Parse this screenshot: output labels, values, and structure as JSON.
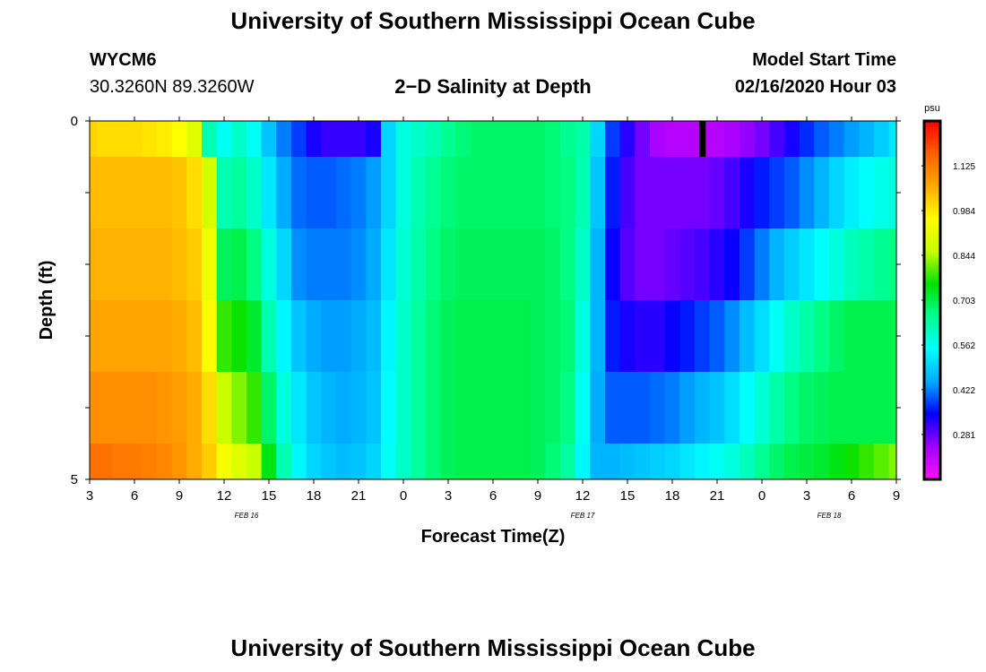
{
  "page": {
    "title_top": "University of Southern Mississippi Ocean Cube",
    "title_bottom": "University of Southern Mississippi Ocean Cube",
    "station_id": "WYCM6",
    "coordinates": "30.3260N 89.3260W",
    "subtitle": "2−D Salinity at Depth",
    "model_start_label": "Model Start Time",
    "model_start_value": "02/16/2020 Hour 03"
  },
  "colors": {
    "background": "#ffffff",
    "scale": [
      "#ff10ff",
      "#a000ff",
      "#0000ff",
      "#00aaff",
      "#00ffff",
      "#00ff90",
      "#00e000",
      "#c8ff00",
      "#ffff00",
      "#ffaa00",
      "#ff6000",
      "#ff0000"
    ]
  },
  "chart_data": {
    "type": "heatmap",
    "title": "2−D Salinity at Depth",
    "xlabel": "Forecast Time(Z)",
    "ylabel": "Depth (ft)",
    "x_ticks": [
      "3",
      "6",
      "9",
      "12",
      "15",
      "18",
      "21",
      "0",
      "3",
      "6",
      "9",
      "12",
      "15",
      "18",
      "21",
      "0",
      "3",
      "6",
      "9"
    ],
    "x_date_labels": [
      {
        "text": "FEB 16",
        "at_tick": 3.5
      },
      {
        "text": "FEB 17",
        "at_tick": 11
      },
      {
        "text": "FEB 18",
        "at_tick": 16.5
      }
    ],
    "x_range_hours": [
      0,
      54
    ],
    "y_ticks": [
      "0",
      "5"
    ],
    "y_range": [
      0,
      5
    ],
    "y_direction": "depth increases downward",
    "depth_levels_ft": [
      0,
      0.5,
      1.5,
      2.5,
      3.5,
      4.5
    ],
    "colorbar": {
      "unit": "psu",
      "labels": [
        "1.125",
        "0.984",
        "0.844",
        "0.703",
        "0.562",
        "0.422",
        "0.281"
      ],
      "range": [
        0.14,
        1.266
      ]
    },
    "series": [
      {
        "x": [
          0,
          1,
          2,
          3,
          4,
          5,
          6,
          7,
          8,
          9,
          10,
          11,
          12,
          13,
          14,
          15,
          16,
          17,
          18,
          19,
          20,
          21,
          22,
          23,
          24,
          25,
          26,
          27,
          28,
          29,
          30,
          31,
          32,
          33,
          34,
          35,
          36,
          37,
          38,
          39,
          40,
          41,
          42,
          43,
          44,
          45,
          46,
          47,
          48,
          49,
          50,
          51,
          52,
          53,
          54
        ],
        "values": [
          1.01,
          1.0,
          1.0,
          1.0,
          0.99,
          0.98,
          0.96,
          0.9,
          0.62,
          0.56,
          0.6,
          0.56,
          0.48,
          0.42,
          0.38,
          0.33,
          0.31,
          0.31,
          0.31,
          0.33,
          0.5,
          0.58,
          0.6,
          0.62,
          0.65,
          0.67,
          0.68,
          0.68,
          0.68,
          0.68,
          0.68,
          0.67,
          0.65,
          0.63,
          0.5,
          0.38,
          0.32,
          0.27,
          0.23,
          0.22,
          0.22,
          0.22,
          0.22,
          0.23,
          0.25,
          0.27,
          0.3,
          0.33,
          0.37,
          0.4,
          0.42,
          0.44,
          0.46,
          0.49,
          0.52
        ]
      },
      {
        "x": [
          0,
          1,
          2,
          3,
          4,
          5,
          6,
          7,
          8,
          9,
          10,
          11,
          12,
          13,
          14,
          15,
          16,
          17,
          18,
          19,
          20,
          21,
          22,
          23,
          24,
          25,
          26,
          27,
          28,
          29,
          30,
          31,
          32,
          33,
          34,
          35,
          36,
          37,
          38,
          39,
          40,
          41,
          42,
          43,
          44,
          45,
          46,
          47,
          48,
          49,
          50,
          51,
          52,
          53,
          54
        ],
        "values": [
          1.04,
          1.04,
          1.04,
          1.04,
          1.04,
          1.04,
          1.03,
          1.0,
          0.88,
          0.62,
          0.64,
          0.6,
          0.52,
          0.45,
          0.41,
          0.4,
          0.4,
          0.41,
          0.42,
          0.44,
          0.5,
          0.58,
          0.62,
          0.65,
          0.67,
          0.68,
          0.68,
          0.68,
          0.68,
          0.68,
          0.68,
          0.67,
          0.66,
          0.62,
          0.48,
          0.36,
          0.3,
          0.27,
          0.27,
          0.27,
          0.27,
          0.27,
          0.28,
          0.3,
          0.33,
          0.36,
          0.38,
          0.4,
          0.43,
          0.46,
          0.5,
          0.53,
          0.55,
          0.57,
          0.58
        ]
      },
      {
        "x": [
          0,
          1,
          2,
          3,
          4,
          5,
          6,
          7,
          8,
          9,
          10,
          11,
          12,
          13,
          14,
          15,
          16,
          17,
          18,
          19,
          20,
          21,
          22,
          23,
          24,
          25,
          26,
          27,
          28,
          29,
          30,
          31,
          32,
          33,
          34,
          35,
          36,
          37,
          38,
          39,
          40,
          41,
          42,
          43,
          44,
          45,
          46,
          47,
          48,
          49,
          50,
          51,
          52,
          53,
          54
        ],
        "values": [
          1.05,
          1.05,
          1.05,
          1.05,
          1.05,
          1.05,
          1.04,
          1.02,
          0.93,
          0.69,
          0.7,
          0.66,
          0.58,
          0.5,
          0.43,
          0.42,
          0.42,
          0.42,
          0.43,
          0.45,
          0.52,
          0.59,
          0.63,
          0.66,
          0.68,
          0.69,
          0.69,
          0.69,
          0.69,
          0.69,
          0.69,
          0.68,
          0.66,
          0.6,
          0.46,
          0.34,
          0.29,
          0.27,
          0.27,
          0.28,
          0.29,
          0.3,
          0.32,
          0.34,
          0.38,
          0.42,
          0.46,
          0.49,
          0.52,
          0.55,
          0.58,
          0.61,
          0.63,
          0.65,
          0.66
        ]
      },
      {
        "x": [
          0,
          1,
          2,
          3,
          4,
          5,
          6,
          7,
          8,
          9,
          10,
          11,
          12,
          13,
          14,
          15,
          16,
          17,
          18,
          19,
          20,
          21,
          22,
          23,
          24,
          25,
          26,
          27,
          28,
          29,
          30,
          31,
          32,
          33,
          34,
          35,
          36,
          37,
          38,
          39,
          40,
          41,
          42,
          43,
          44,
          45,
          46,
          47,
          48,
          49,
          50,
          51,
          52,
          53,
          54
        ],
        "values": [
          1.07,
          1.07,
          1.07,
          1.07,
          1.07,
          1.07,
          1.06,
          1.04,
          0.96,
          0.78,
          0.76,
          0.72,
          0.62,
          0.54,
          0.48,
          0.45,
          0.44,
          0.44,
          0.45,
          0.47,
          0.54,
          0.6,
          0.64,
          0.67,
          0.69,
          0.7,
          0.7,
          0.7,
          0.7,
          0.7,
          0.69,
          0.68,
          0.67,
          0.58,
          0.46,
          0.36,
          0.33,
          0.32,
          0.32,
          0.34,
          0.36,
          0.38,
          0.4,
          0.43,
          0.47,
          0.51,
          0.56,
          0.6,
          0.63,
          0.66,
          0.68,
          0.7,
          0.7,
          0.7,
          0.7
        ]
      },
      {
        "x": [
          0,
          1,
          2,
          3,
          4,
          5,
          6,
          7,
          8,
          9,
          10,
          11,
          12,
          13,
          14,
          15,
          16,
          17,
          18,
          19,
          20,
          21,
          22,
          23,
          24,
          25,
          26,
          27,
          28,
          29,
          30,
          31,
          32,
          33,
          34,
          35,
          36,
          37,
          38,
          39,
          40,
          41,
          42,
          43,
          44,
          45,
          46,
          47,
          48,
          49,
          50,
          51,
          52,
          53,
          54
        ],
        "values": [
          1.1,
          1.1,
          1.1,
          1.1,
          1.1,
          1.09,
          1.08,
          1.06,
          1.0,
          0.86,
          0.82,
          0.78,
          0.68,
          0.58,
          0.52,
          0.48,
          0.46,
          0.45,
          0.46,
          0.48,
          0.55,
          0.6,
          0.64,
          0.67,
          0.69,
          0.7,
          0.7,
          0.7,
          0.7,
          0.7,
          0.69,
          0.68,
          0.66,
          0.56,
          0.45,
          0.4,
          0.4,
          0.4,
          0.41,
          0.42,
          0.44,
          0.46,
          0.48,
          0.51,
          0.55,
          0.59,
          0.63,
          0.66,
          0.68,
          0.69,
          0.7,
          0.7,
          0.7,
          0.7,
          0.7
        ]
      },
      {
        "x": [
          0,
          1,
          2,
          3,
          4,
          5,
          6,
          7,
          8,
          9,
          10,
          11,
          12,
          13,
          14,
          15,
          16,
          17,
          18,
          19,
          20,
          21,
          22,
          23,
          24,
          25,
          26,
          27,
          28,
          29,
          30,
          31,
          32,
          33,
          34,
          35,
          36,
          37,
          38,
          39,
          40,
          41,
          42,
          43,
          44,
          45,
          46,
          47,
          48,
          49,
          50,
          51,
          52,
          53,
          54
        ],
        "values": [
          1.14,
          1.14,
          1.13,
          1.13,
          1.12,
          1.11,
          1.09,
          1.06,
          1.02,
          0.94,
          0.9,
          0.86,
          0.74,
          0.62,
          0.54,
          0.5,
          0.48,
          0.47,
          0.48,
          0.5,
          0.56,
          0.6,
          0.64,
          0.67,
          0.69,
          0.7,
          0.7,
          0.7,
          0.7,
          0.7,
          0.69,
          0.67,
          0.64,
          0.54,
          0.46,
          0.46,
          0.47,
          0.48,
          0.49,
          0.5,
          0.52,
          0.54,
          0.56,
          0.58,
          0.61,
          0.65,
          0.68,
          0.7,
          0.71,
          0.72,
          0.74,
          0.76,
          0.78,
          0.8,
          0.82
        ]
      }
    ],
    "series_order_note": "series[i] corresponds to depth_levels_ft[i]",
    "missing_marker": {
      "x_hours": 41,
      "depth_rows": [
        0
      ]
    }
  }
}
